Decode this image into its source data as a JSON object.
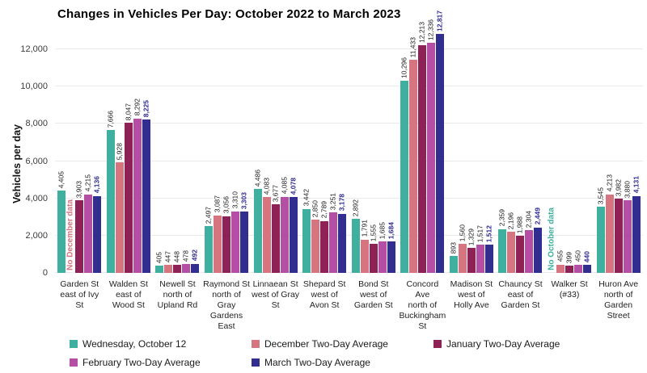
{
  "chart_data": {
    "type": "bar",
    "title": "Changes in Vehicles Per Day: October 2022 to March 2023",
    "xlabel": "",
    "ylabel": "Vehicles per day",
    "ylim": [
      0,
      12000
    ],
    "ytick_step": 2000,
    "yticks": [
      "0",
      "2,000",
      "4,000",
      "6,000",
      "8,000",
      "10,000",
      "12,000"
    ],
    "grid": true,
    "legend_position": "bottom",
    "categories": [
      "Garden St east of Ivy St",
      "Walden St east of Wood St",
      "Newell St north of Upland Rd",
      "Raymond St north of Gray Gardens East",
      "Linnaean St west of Gray St",
      "Shepard St west of Avon St",
      "Bond St west of Garden St",
      "Concord Ave north of Buckingham St",
      "Madison St west of Holly Ave",
      "Chauncy St east of Garden St",
      "Walker St (#33)",
      "Huron Ave north of Garden Street"
    ],
    "category_lines": [
      [
        "Garden St",
        "east of Ivy",
        "St"
      ],
      [
        "Walden St",
        "east of",
        "Wood St"
      ],
      [
        "Newell St",
        "north of",
        "Upland Rd"
      ],
      [
        "Raymond St",
        "north of",
        "Gray",
        "Gardens",
        "East"
      ],
      [
        "Linnaean St",
        "west of Gray",
        "St"
      ],
      [
        "Shepard St",
        "west of",
        "Avon St"
      ],
      [
        "Bond St",
        "west of",
        "Garden St"
      ],
      [
        "Concord",
        "Ave",
        "north of",
        "Buckingham",
        "St"
      ],
      [
        "Madison St",
        "west of",
        "Holly Ave"
      ],
      [
        "Chauncy St",
        "east of",
        "Garden St"
      ],
      [
        "Walker St",
        "(#33)"
      ],
      [
        "Huron Ave",
        "north of",
        "Garden",
        "Street"
      ]
    ],
    "series": [
      {
        "name": "Wednesday, October 12",
        "color": "#3FAF9F",
        "label_bold": false,
        "values": [
          4405,
          7666,
          405,
          2497,
          4486,
          3442,
          2892,
          10296,
          893,
          2359,
          null,
          3545
        ]
      },
      {
        "name": "December Two-Day Average",
        "color": "#D6747F",
        "label_bold": false,
        "values": [
          null,
          5928,
          447,
          3087,
          4083,
          2850,
          1791,
          11433,
          1560,
          2196,
          455,
          4213
        ]
      },
      {
        "name": "January Two-Day Average",
        "color": "#8E2155",
        "label_bold": false,
        "values": [
          3903,
          8047,
          448,
          3056,
          3677,
          2789,
          1555,
          12213,
          1329,
          1988,
          399,
          3982
        ]
      },
      {
        "name": "February Two-Day Average",
        "color": "#B44FA5",
        "label_bold": false,
        "values": [
          4215,
          8292,
          478,
          3310,
          4085,
          3251,
          1685,
          12336,
          1517,
          2304,
          450,
          3880
        ]
      },
      {
        "name": "March Two-Day Average",
        "color": "#312E90",
        "label_bold": true,
        "values": [
          4136,
          8225,
          492,
          3303,
          4078,
          3178,
          1684,
          12817,
          1512,
          2449,
          440,
          4131
        ]
      }
    ],
    "missing_data_notes": [
      {
        "category_index": 0,
        "series_index": 1,
        "text": "No December data"
      },
      {
        "category_index": 10,
        "series_index": 0,
        "text": "No October data"
      }
    ]
  }
}
